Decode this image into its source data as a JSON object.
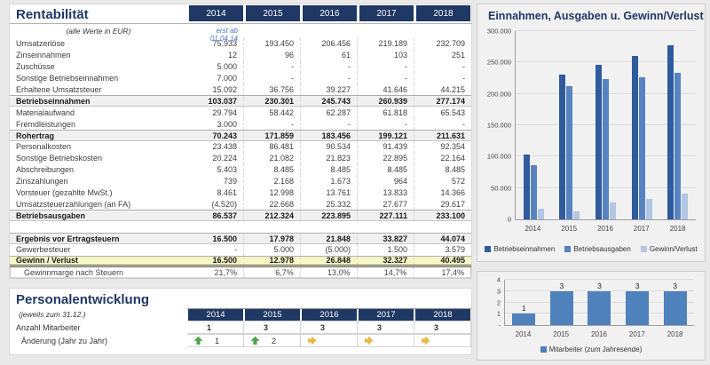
{
  "colors": {
    "header_navy": "#1F3864",
    "note_blue": "#4472C4",
    "profit_row_bg": "#F6F6C6",
    "arrow_up_green": "#4DA44D",
    "arrow_right_yellow": "#EFB93F"
  },
  "rentabilitaet": {
    "title": "Rentabilität",
    "subtitle": "(alle Werte in EUR)",
    "note_2014": "erst ab 01.04.14",
    "years": [
      "2014",
      "2015",
      "2016",
      "2017",
      "2018"
    ],
    "rows": [
      {
        "label": "Umsatzerlöse",
        "values": [
          "75.933",
          "193.450",
          "206.456",
          "219.189",
          "232.709"
        ]
      },
      {
        "label": "Zinseinnahmen",
        "values": [
          "12",
          "96",
          "61",
          "103",
          "251"
        ]
      },
      {
        "label": "Zuschüsse",
        "values": [
          "5.000",
          "-",
          "-",
          "-",
          "-"
        ]
      },
      {
        "label": "Sonstige Betriebseinnahmen",
        "values": [
          "7.000",
          "-",
          "-",
          "-",
          "-"
        ]
      },
      {
        "label": "Erhaltene Umsatzsteuer",
        "values": [
          "15.092",
          "36.756",
          "39.227",
          "41.646",
          "44.215"
        ]
      },
      {
        "label": "Betriebseinnahmen",
        "values": [
          "103.037",
          "230.301",
          "245.743",
          "260.939",
          "277.174"
        ],
        "style": "total"
      },
      {
        "label": "Materialaufwand",
        "values": [
          "29.794",
          "58.442",
          "62.287",
          "61.818",
          "65.543"
        ]
      },
      {
        "label": "Fremdleistungen",
        "values": [
          "3.000",
          "-",
          "-",
          "-",
          "-"
        ]
      },
      {
        "label": "Rohertrag",
        "values": [
          "70.243",
          "171.859",
          "183.456",
          "199.121",
          "211.631"
        ],
        "style": "total"
      },
      {
        "label": "Personalkosten",
        "values": [
          "23.438",
          "86.481",
          "90.534",
          "91.439",
          "92.354"
        ]
      },
      {
        "label": "Sonstige Betriebskosten",
        "values": [
          "20.224",
          "21.082",
          "21.823",
          "22.895",
          "22.164"
        ]
      },
      {
        "label": "Abschreibungen",
        "values": [
          "5.403",
          "8.485",
          "8.485",
          "8.485",
          "8.485"
        ]
      },
      {
        "label": "Zinszahlungen",
        "values": [
          "739",
          "2.168",
          "1.673",
          "964",
          "572"
        ]
      },
      {
        "label": "Vorsteuer (gezahlte MwSt.)",
        "values": [
          "8.461",
          "12.998",
          "13.761",
          "13.833",
          "14.366"
        ]
      },
      {
        "label": "Umsatzsteuerzahlungen (an FA)",
        "values": [
          "(4.520)",
          "22.668",
          "25.332",
          "27.677",
          "29.617"
        ]
      },
      {
        "label": "Betriebsausgaben",
        "values": [
          "86.537",
          "212.324",
          "223.895",
          "227.111",
          "233.100"
        ],
        "style": "total"
      },
      {
        "label": "",
        "values": [
          "",
          "",
          "",
          "",
          ""
        ],
        "style": "spacer"
      },
      {
        "label": "Ergebnis vor Ertragsteuern",
        "values": [
          "16.500",
          "17.978",
          "21.848",
          "33.827",
          "44.074"
        ],
        "style": "total"
      },
      {
        "label": "Gewerbesteuer",
        "values": [
          "-",
          "5.000",
          "(5.000)",
          "1.500",
          "3.579"
        ]
      },
      {
        "label": "Gewinn / Verlust",
        "values": [
          "16.500",
          "12.978",
          "26.848",
          "32.327",
          "40.495"
        ],
        "style": "profit"
      },
      {
        "label": "Gewinnmarge nach Steuern",
        "values": [
          "21,7%",
          "6,7%",
          "13,0%",
          "14,7%",
          "17,4%"
        ],
        "style": "margin"
      }
    ]
  },
  "personal": {
    "title": "Personalentwicklung",
    "subtitle": "(jeweils zum 31.12.)",
    "years": [
      "2014",
      "2015",
      "2016",
      "2017",
      "2018"
    ],
    "anzahl_label": "Anzahl Mitarbeiter",
    "anzahl_values": [
      "1",
      "3",
      "3",
      "3",
      "3"
    ],
    "aenderung_label": "Änderung (Jahr zu Jahr)",
    "aenderung": [
      {
        "dir": "up",
        "value": "1"
      },
      {
        "dir": "up",
        "value": "2"
      },
      {
        "dir": "right",
        "value": ""
      },
      {
        "dir": "right",
        "value": ""
      },
      {
        "dir": "right",
        "value": ""
      }
    ]
  },
  "chart_data": [
    {
      "type": "bar",
      "title": "Einnahmen, Ausgaben u. Gewinn/Verlust",
      "categories": [
        "2014",
        "2015",
        "2016",
        "2017",
        "2018"
      ],
      "series": [
        {
          "name": "Betriebseinnahmen",
          "values": [
            103037,
            230301,
            245743,
            260939,
            277174
          ],
          "color": "#2F5B9D"
        },
        {
          "name": "Betriebsausgaben",
          "values": [
            86537,
            212324,
            223895,
            227111,
            233100
          ],
          "color": "#5784C1"
        },
        {
          "name": "Gewinn/Verlust",
          "values": [
            16500,
            12978,
            26848,
            32327,
            40495
          ],
          "color": "#B3C6E3"
        }
      ],
      "ylim": [
        0,
        300000
      ],
      "ytick_labels": [
        "0",
        "50.000",
        "100.000",
        "150.000",
        "200.000",
        "250.000",
        "300.000"
      ],
      "grid": true,
      "legend_position": "bottom",
      "data_labels": false
    },
    {
      "type": "bar",
      "title": "",
      "categories": [
        "2014",
        "2015",
        "2016",
        "2017",
        "2018"
      ],
      "series": [
        {
          "name": "Mitarbeiter (zum Jahresende)",
          "values": [
            1,
            3,
            3,
            3,
            3
          ],
          "color": "#4F81BD"
        }
      ],
      "ylim": [
        0,
        4
      ],
      "ytick_labels": [
        "-",
        "1",
        "2",
        "3",
        "4"
      ],
      "grid": true,
      "legend_position": "bottom",
      "data_labels": true
    }
  ]
}
